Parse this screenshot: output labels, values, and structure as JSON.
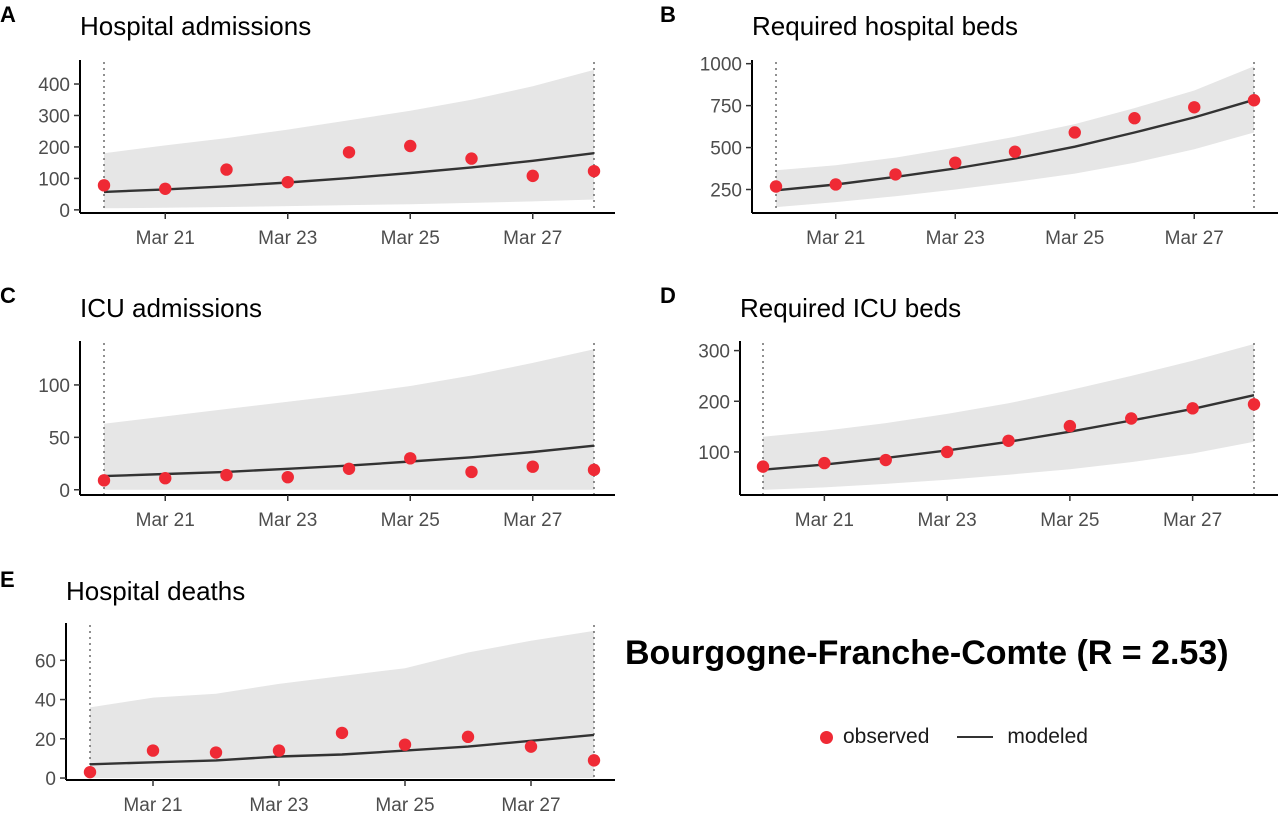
{
  "figure_title": "Bourgogne-Franche-Comte (R = 2.53)",
  "legend": {
    "observed_label": "observed",
    "modeled_label": "modeled",
    "observed_color": "#ef2a35",
    "modeled_color": "#333333",
    "ribbon_color": "#e6e6e6"
  },
  "chart_data": [
    {
      "panel": "A",
      "type": "line",
      "title": "Hospital admissions",
      "x": [
        "Mar 20",
        "Mar 21",
        "Mar 22",
        "Mar 23",
        "Mar 24",
        "Mar 25",
        "Mar 26",
        "Mar 27",
        "Mar 28"
      ],
      "x_tick_labels": [
        "Mar 21",
        "Mar 23",
        "Mar 25",
        "Mar 27"
      ],
      "y_ticks": [
        0,
        100,
        200,
        300,
        400
      ],
      "ylim": [
        -10,
        470
      ],
      "series": [
        {
          "name": "observed",
          "values": [
            78,
            67,
            128,
            88,
            183,
            203,
            163,
            108,
            123
          ]
        },
        {
          "name": "modeled",
          "values": [
            57,
            65,
            75,
            87,
            101,
            117,
            135,
            156,
            180
          ]
        },
        {
          "name": "ribbon_lower",
          "values": [
            5,
            7,
            9,
            12,
            15,
            18,
            22,
            27,
            33
          ]
        },
        {
          "name": "ribbon_upper",
          "values": [
            180,
            205,
            228,
            255,
            285,
            315,
            350,
            393,
            445
          ]
        }
      ]
    },
    {
      "panel": "B",
      "type": "line",
      "title": "Required hospital beds",
      "x": [
        "Mar 20",
        "Mar 21",
        "Mar 22",
        "Mar 23",
        "Mar 24",
        "Mar 25",
        "Mar 26",
        "Mar 27",
        "Mar 28"
      ],
      "x_tick_labels": [
        "Mar 21",
        "Mar 23",
        "Mar 25",
        "Mar 27"
      ],
      "y_ticks": [
        250,
        500,
        750,
        1000
      ],
      "ylim": [
        110,
        1010
      ],
      "series": [
        {
          "name": "observed",
          "values": [
            268,
            280,
            340,
            410,
            475,
            590,
            675,
            740,
            782
          ]
        },
        {
          "name": "modeled",
          "values": [
            245,
            280,
            325,
            375,
            435,
            505,
            590,
            680,
            785
          ]
        },
        {
          "name": "ribbon_lower",
          "values": [
            145,
            175,
            210,
            250,
            295,
            345,
            410,
            490,
            590
          ]
        },
        {
          "name": "ribbon_upper",
          "values": [
            365,
            395,
            440,
            500,
            565,
            640,
            735,
            840,
            985
          ]
        }
      ]
    },
    {
      "panel": "C",
      "type": "line",
      "title": "ICU admissions",
      "x": [
        "Mar 20",
        "Mar 21",
        "Mar 22",
        "Mar 23",
        "Mar 24",
        "Mar 25",
        "Mar 26",
        "Mar 27",
        "Mar 28"
      ],
      "x_tick_labels": [
        "Mar 21",
        "Mar 23",
        "Mar 25",
        "Mar 27"
      ],
      "y_ticks": [
        0,
        50,
        100
      ],
      "ylim": [
        -5,
        140
      ],
      "series": [
        {
          "name": "observed",
          "values": [
            9,
            11,
            14,
            12,
            20,
            30,
            17,
            22,
            19
          ]
        },
        {
          "name": "modeled",
          "values": [
            13,
            15,
            17,
            20,
            23,
            27,
            31,
            36,
            42
          ]
        },
        {
          "name": "ribbon_lower",
          "values": [
            0,
            0,
            0,
            0,
            0,
            0,
            0,
            0,
            0
          ]
        },
        {
          "name": "ribbon_upper",
          "values": [
            63,
            70,
            77,
            84,
            91,
            99,
            109,
            121,
            134
          ]
        }
      ]
    },
    {
      "panel": "D",
      "type": "line",
      "title": "Required ICU beds",
      "x": [
        "Mar 20",
        "Mar 21",
        "Mar 22",
        "Mar 23",
        "Mar 24",
        "Mar 25",
        "Mar 26",
        "Mar 27",
        "Mar 28"
      ],
      "x_tick_labels": [
        "Mar 21",
        "Mar 23",
        "Mar 25",
        "Mar 27"
      ],
      "y_ticks": [
        100,
        200,
        300
      ],
      "ylim": [
        15,
        315
      ],
      "series": [
        {
          "name": "observed",
          "values": [
            71,
            78,
            84,
            100,
            122,
            151,
            166,
            186,
            194
          ]
        },
        {
          "name": "modeled",
          "values": [
            65,
            75,
            88,
            103,
            120,
            140,
            162,
            185,
            212
          ]
        },
        {
          "name": "ribbon_lower",
          "values": [
            25,
            30,
            37,
            45,
            55,
            66,
            80,
            97,
            120
          ]
        },
        {
          "name": "ribbon_upper",
          "values": [
            130,
            142,
            157,
            175,
            196,
            222,
            250,
            280,
            313
          ]
        }
      ]
    },
    {
      "panel": "E",
      "type": "line",
      "title": "Hospital deaths",
      "x": [
        "Mar 20",
        "Mar 21",
        "Mar 22",
        "Mar 23",
        "Mar 24",
        "Mar 25",
        "Mar 26",
        "Mar 27",
        "Mar 28"
      ],
      "x_tick_labels": [
        "Mar 21",
        "Mar 23",
        "Mar 25",
        "Mar 27"
      ],
      "y_ticks": [
        0,
        20,
        40,
        60
      ],
      "ylim": [
        -1,
        78
      ],
      "series": [
        {
          "name": "observed",
          "values": [
            3,
            14,
            13,
            14,
            23,
            17,
            21,
            16,
            9
          ]
        },
        {
          "name": "modeled",
          "values": [
            7,
            8,
            9,
            11,
            12,
            14,
            16,
            19,
            22
          ]
        },
        {
          "name": "ribbon_lower",
          "values": [
            0,
            0,
            0,
            0,
            0,
            0,
            0,
            0,
            0
          ]
        },
        {
          "name": "ribbon_upper",
          "values": [
            36,
            41,
            43,
            48,
            52,
            56,
            64,
            70,
            75
          ]
        }
      ]
    }
  ]
}
